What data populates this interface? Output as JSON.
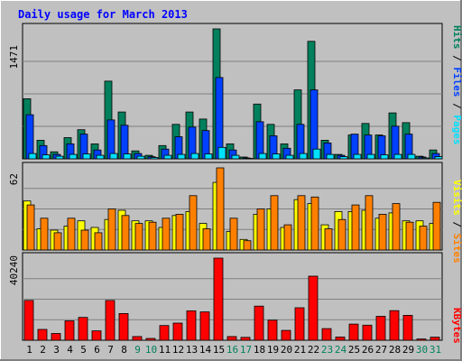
{
  "chart_data": {
    "type": "bar",
    "title": "Daily usage for March 2013",
    "categories": [
      "1",
      "2",
      "3",
      "4",
      "5",
      "6",
      "7",
      "8",
      "9",
      "10",
      "11",
      "12",
      "13",
      "14",
      "15",
      "16",
      "17",
      "18",
      "19",
      "20",
      "21",
      "22",
      "23",
      "24",
      "25",
      "26",
      "27",
      "28",
      "29",
      "30",
      "31"
    ],
    "weekend_days": [
      "9",
      "10",
      "16",
      "17",
      "23",
      "24",
      "30",
      "31"
    ],
    "panels": [
      {
        "name": "hits_files_pages",
        "max_label": "1471",
        "ylim": [
          0,
          1471
        ],
        "legend": [
          {
            "label": "Pages",
            "color": "#00e0ff"
          },
          {
            "label": "Files",
            "color": "#0040ff"
          },
          {
            "label": "Hits",
            "color": "#00805c"
          }
        ],
        "series": [
          {
            "name": "Hits",
            "color": "#00805c",
            "values": [
              680,
              210,
              80,
              240,
              330,
              170,
              880,
              530,
              90,
              40,
              150,
              390,
              530,
              450,
              1471,
              170,
              20,
              620,
              390,
              170,
              780,
              1330,
              210,
              50,
              270,
              400,
              270,
              520,
              410,
              30,
              100
            ]
          },
          {
            "name": "Files",
            "color": "#0040ff",
            "values": [
              500,
              150,
              50,
              170,
              280,
              100,
              440,
              380,
              60,
              25,
              110,
              250,
              360,
              320,
              920,
              100,
              10,
              420,
              260,
              120,
              390,
              780,
              180,
              40,
              280,
              270,
              260,
              370,
              280,
              20,
              60
            ]
          },
          {
            "name": "Pages",
            "color": "#00e0ff",
            "values": [
              60,
              45,
              30,
              50,
              55,
              40,
              60,
              55,
              30,
              15,
              40,
              50,
              60,
              55,
              130,
              40,
              5,
              60,
              55,
              40,
              60,
              110,
              50,
              25,
              50,
              50,
              45,
              50,
              50,
              10,
              25
            ]
          }
        ]
      },
      {
        "name": "visits_sites",
        "max_label": "62",
        "ylim": [
          0,
          62
        ],
        "legend": [
          {
            "label": "Sites",
            "color": "#ff8000"
          },
          {
            "label": "Visits",
            "color": "#ffff00"
          }
        ],
        "series": [
          {
            "name": "Visits",
            "color": "#ffff00",
            "values": [
              37,
              16,
              15,
              18,
              22,
              17,
              23,
              30,
              22,
              22,
              17,
              26,
              29,
              20,
              51,
              14,
              8,
              27,
              31,
              17,
              38,
              35,
              19,
              29,
              29,
              30,
              24,
              28,
              22,
              22,
              20
            ]
          },
          {
            "name": "Sites",
            "color": "#ff8000",
            "values": [
              34,
              24,
              13,
              24,
              15,
              13,
              31,
              26,
              20,
              21,
              24,
              27,
              41,
              16,
              62,
              24,
              7,
              31,
              41,
              19,
              41,
              40,
              16,
              23,
              34,
              41,
              27,
              35,
              21,
              18,
              36
            ]
          }
        ]
      },
      {
        "name": "kbytes",
        "max_label": "40240",
        "ylim": [
          0,
          40240
        ],
        "legend": [
          {
            "label": "KBytes",
            "color": "#ff0000"
          }
        ],
        "series": [
          {
            "name": "KBytes",
            "color": "#ff0000",
            "values": [
              19500,
              5300,
              3300,
              9500,
              11200,
              4600,
              19500,
              13100,
              1800,
              900,
              7200,
              8400,
              14400,
              13900,
              40240,
              1800,
              1400,
              16700,
              9800,
              4800,
              15900,
              31400,
              5700,
              1600,
              7900,
              7400,
              11700,
              14500,
              12200,
              600,
              1500
            ]
          }
        ]
      }
    ]
  }
}
